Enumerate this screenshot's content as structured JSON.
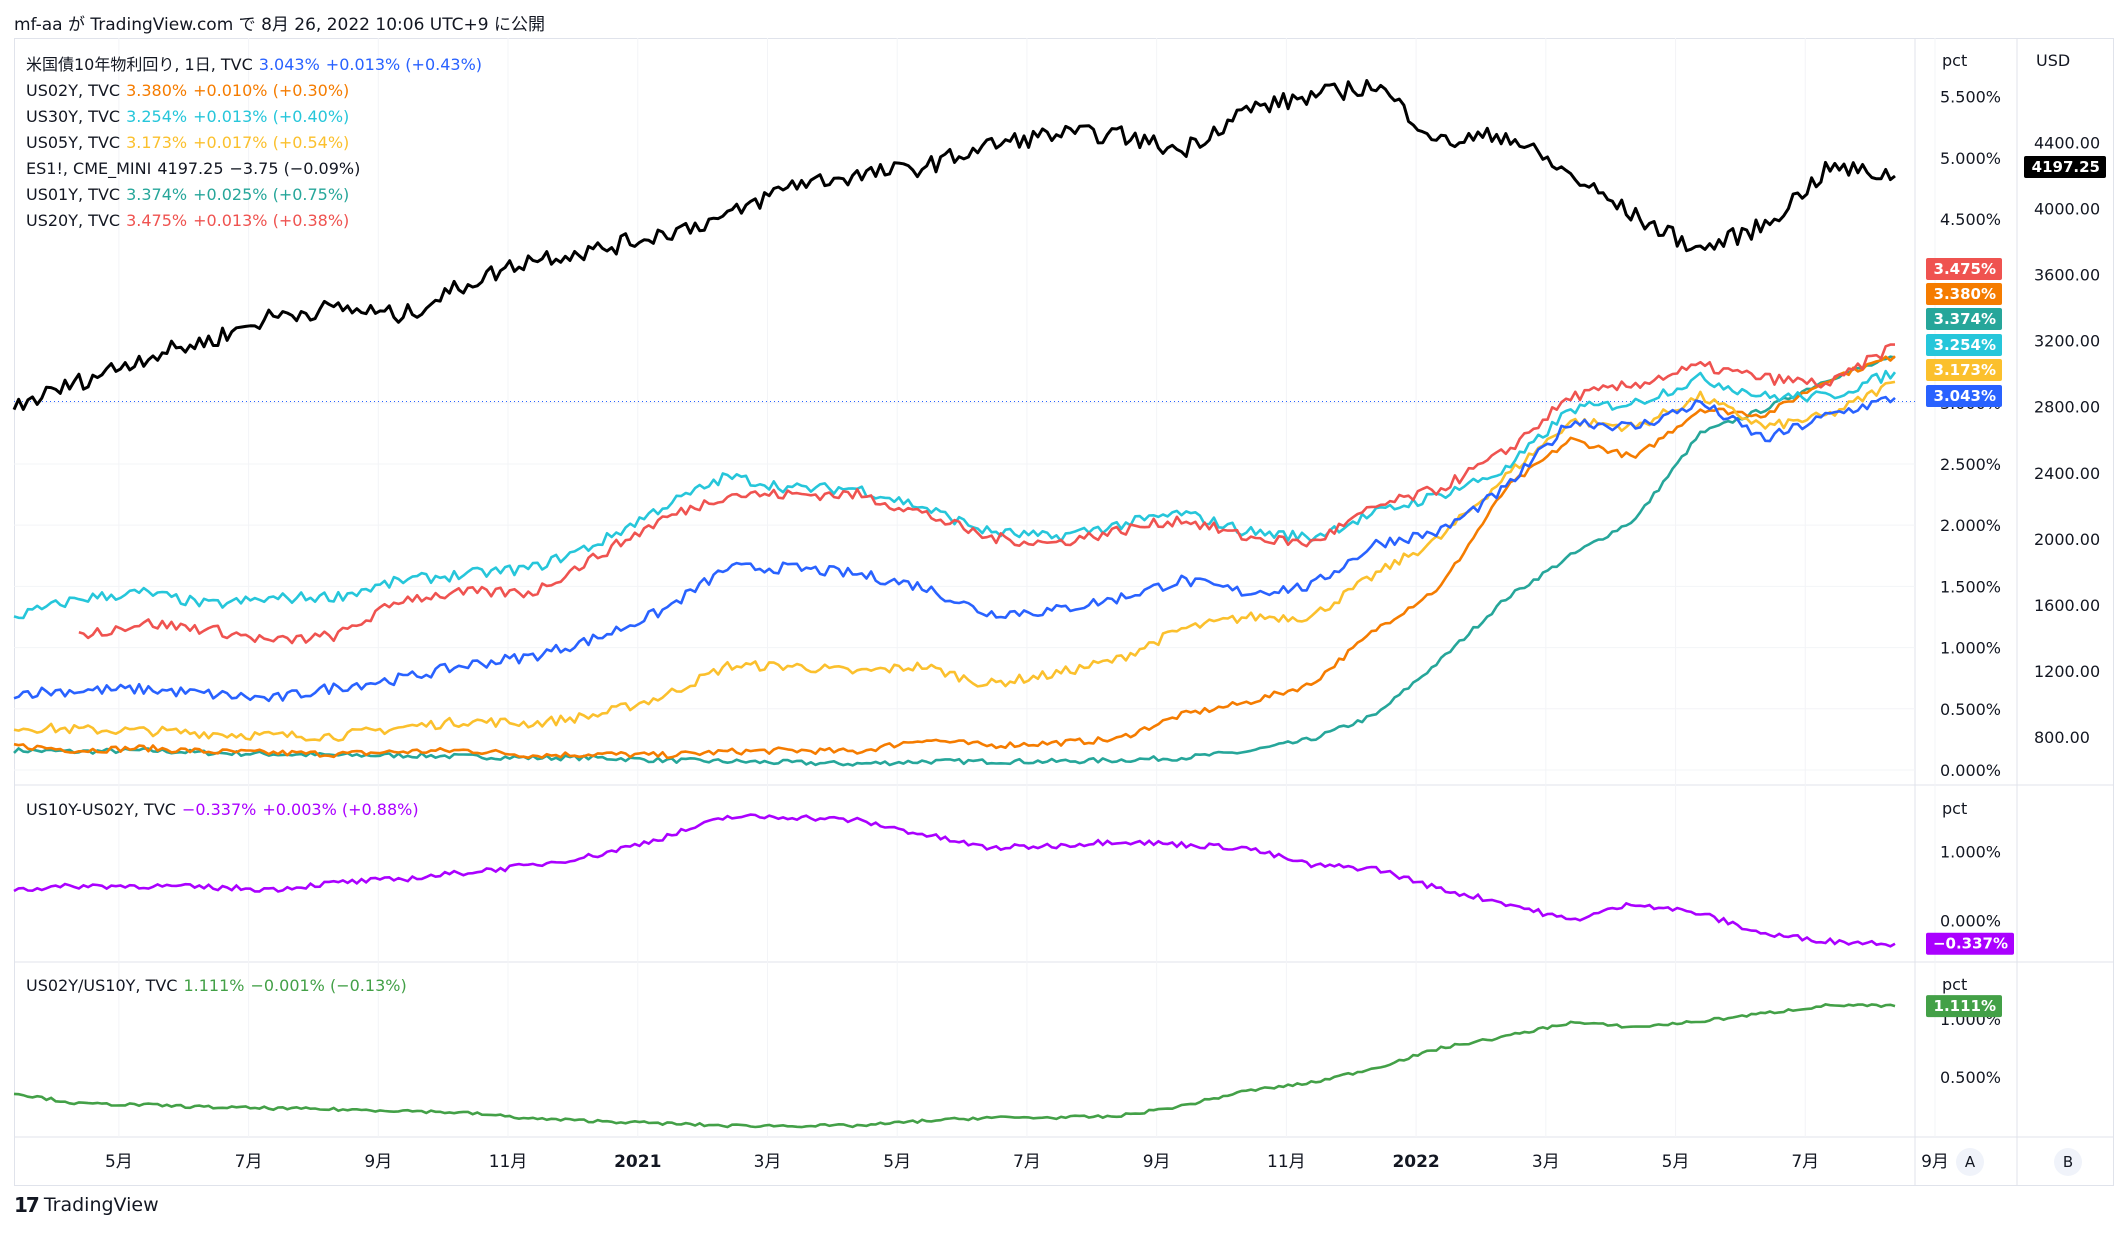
{
  "header": {
    "text": "mf-aa が TradingView.com で 8月 26, 2022 10:06 UTC+9 に公開"
  },
  "footer": {
    "brand": "TradingView",
    "logo": "17"
  },
  "colors": {
    "us10y": "#2962ff",
    "us02y": "#f57c00",
    "us30y": "#26c6da",
    "us05y": "#fbc02d",
    "es1": "#000000",
    "us01y": "#26a69a",
    "us20y": "#ef5350",
    "spread": "#aa00ff",
    "ratio": "#43a047"
  },
  "legend_main": [
    {
      "name": "米国債10年物利回り, 1日, TVC",
      "last": "3.043%",
      "chg": "+0.013% (+0.43%)",
      "color": "#2962ff"
    },
    {
      "name": "US02Y, TVC",
      "last": "3.380%",
      "chg": "+0.010% (+0.30%)",
      "color": "#f57c00"
    },
    {
      "name": "US30Y, TVC",
      "last": "3.254%",
      "chg": "+0.013% (+0.40%)",
      "color": "#26c6da"
    },
    {
      "name": "US05Y, TVC",
      "last": "3.173%",
      "chg": "+0.017% (+0.54%)",
      "color": "#fbc02d"
    },
    {
      "name": "ES1!, CME_MINI",
      "last": "4197.25",
      "chg": "−3.75 (−0.09%)",
      "color": "#131722"
    },
    {
      "name": "US01Y, TVC",
      "last": "3.374%",
      "chg": "+0.025% (+0.75%)",
      "color": "#26a69a"
    },
    {
      "name": "US20Y, TVC",
      "last": "3.475%",
      "chg": "+0.013% (+0.38%)",
      "color": "#ef5350"
    }
  ],
  "legend_spread": {
    "name": "US10Y-US02Y, TVC",
    "last": "−0.337%",
    "chg": "+0.003% (+0.88%)",
    "color": "#aa00ff"
  },
  "legend_ratio": {
    "name": "US02Y/US10Y, TVC",
    "last": "1.111%",
    "chg": "−0.001% (−0.13%)",
    "color": "#43a047"
  },
  "axis_labels": {
    "pct": "pct",
    "usd": "USD",
    "pct_ticks": [
      "5.500%",
      "5.000%",
      "4.500%",
      "3.000%",
      "2.500%",
      "2.000%",
      "1.500%",
      "1.000%",
      "0.500%",
      "0.000%"
    ],
    "usd_ticks": [
      "4400.00",
      "4000.00",
      "3600.00",
      "3200.00",
      "2800.00",
      "2400.00",
      "2000.00",
      "1600.00",
      "1200.00",
      "800.00"
    ],
    "spread_ticks": [
      "1.000%",
      "0.000%"
    ],
    "ratio_ticks": [
      "1.000%",
      "0.500%"
    ],
    "x_ticks": [
      "5月",
      "7月",
      "9月",
      "11月",
      "2021",
      "3月",
      "5月",
      "7月",
      "9月",
      "11月",
      "2022",
      "3月",
      "5月",
      "7月",
      "9月"
    ],
    "btn_a": "A",
    "btn_b": "B"
  },
  "price_badges": [
    {
      "text": "3.475%",
      "color": "#ef5350"
    },
    {
      "text": "3.380%",
      "color": "#f57c00"
    },
    {
      "text": "3.374%",
      "color": "#26a69a"
    },
    {
      "text": "3.254%",
      "color": "#26c6da"
    },
    {
      "text": "3.173%",
      "color": "#fbc02d"
    },
    {
      "text": "3.043%",
      "color": "#2962ff"
    },
    {
      "text": "4197.25",
      "color": "#000000"
    },
    {
      "text": "−0.337%",
      "color": "#aa00ff"
    },
    {
      "text": "1.111%",
      "color": "#43a047"
    }
  ],
  "chart_data": [
    {
      "type": "line",
      "title": "米国債10年物利回り, 1日, TVC",
      "x": [
        "2020-04",
        "2020-05",
        "2020-06",
        "2020-07",
        "2020-08",
        "2020-09",
        "2020-10",
        "2020-11",
        "2020-12",
        "2021-01",
        "2021-02",
        "2021-03",
        "2021-04",
        "2021-05",
        "2021-06",
        "2021-07",
        "2021-08",
        "2021-09",
        "2021-10",
        "2021-11",
        "2021-12",
        "2022-01",
        "2022-02",
        "2022-03",
        "2022-04",
        "2022-05",
        "2022-06",
        "2022-07",
        "2022-08",
        "2022-09"
      ],
      "series": [
        {
          "name": "US10Y",
          "axis": "pct",
          "values": [
            0.63,
            0.65,
            0.66,
            0.62,
            0.58,
            0.68,
            0.75,
            0.86,
            0.93,
            1.08,
            1.3,
            1.65,
            1.65,
            1.6,
            1.5,
            1.28,
            1.3,
            1.4,
            1.55,
            1.45,
            1.5,
            1.85,
            1.95,
            2.3,
            2.85,
            2.8,
            3.0,
            2.7,
            2.9,
            3.04
          ]
        },
        {
          "name": "US02Y",
          "axis": "pct",
          "values": [
            0.2,
            0.16,
            0.18,
            0.15,
            0.14,
            0.13,
            0.15,
            0.16,
            0.12,
            0.13,
            0.12,
            0.15,
            0.16,
            0.15,
            0.25,
            0.2,
            0.22,
            0.25,
            0.45,
            0.55,
            0.7,
            1.15,
            1.5,
            2.3,
            2.7,
            2.55,
            2.95,
            2.9,
            3.2,
            3.38
          ]
        },
        {
          "name": "US30Y",
          "axis": "pct",
          "values": [
            1.25,
            1.4,
            1.45,
            1.35,
            1.4,
            1.42,
            1.55,
            1.6,
            1.65,
            1.85,
            2.15,
            2.4,
            2.3,
            2.3,
            2.15,
            1.95,
            1.9,
            2.0,
            2.1,
            1.95,
            1.9,
            2.1,
            2.25,
            2.45,
            2.95,
            3.0,
            3.2,
            3.05,
            3.05,
            3.25
          ]
        },
        {
          "name": "US05Y",
          "axis": "pct",
          "values": [
            0.35,
            0.33,
            0.32,
            0.3,
            0.28,
            0.28,
            0.35,
            0.4,
            0.38,
            0.45,
            0.6,
            0.85,
            0.85,
            0.8,
            0.85,
            0.7,
            0.78,
            0.9,
            1.15,
            1.25,
            1.25,
            1.6,
            1.9,
            2.4,
            2.85,
            2.8,
            3.05,
            2.8,
            2.9,
            3.17
          ]
        },
        {
          "name": "ES1!",
          "axis": "usd",
          "values": [
            2800,
            2950,
            3100,
            3200,
            3350,
            3400,
            3350,
            3550,
            3700,
            3750,
            3850,
            3950,
            4150,
            4200,
            4250,
            4380,
            4450,
            4450,
            4350,
            4600,
            4680,
            4750,
            4400,
            4450,
            4200,
            3950,
            3750,
            3900,
            4250,
            4197.25
          ]
        },
        {
          "name": "US01Y",
          "axis": "pct",
          "values": [
            0.16,
            0.15,
            0.16,
            0.14,
            0.13,
            0.12,
            0.12,
            0.11,
            0.1,
            0.1,
            0.08,
            0.07,
            0.06,
            0.05,
            0.07,
            0.07,
            0.07,
            0.08,
            0.1,
            0.15,
            0.25,
            0.45,
            0.9,
            1.4,
            1.75,
            2.05,
            2.75,
            2.95,
            3.2,
            3.37
          ]
        },
        {
          "name": "US20Y",
          "axis": "pct",
          "values": [
            null,
            1.1,
            1.2,
            1.15,
            1.05,
            1.1,
            1.4,
            1.45,
            1.45,
            1.75,
            2.05,
            2.25,
            2.25,
            2.25,
            2.1,
            1.9,
            1.85,
            1.95,
            2.05,
            1.9,
            1.85,
            2.15,
            2.3,
            2.6,
            3.05,
            3.15,
            3.3,
            3.2,
            3.15,
            3.475
          ]
        }
      ],
      "pct_ylim": [
        0,
        5.8
      ],
      "usd_ylim": [
        600,
        4900
      ]
    },
    {
      "type": "line",
      "title": "US10Y-US02Y, TVC",
      "x": [
        "2020-04",
        "2020-05",
        "2020-06",
        "2020-07",
        "2020-08",
        "2020-09",
        "2020-10",
        "2020-11",
        "2020-12",
        "2021-01",
        "2021-02",
        "2021-03",
        "2021-04",
        "2021-05",
        "2021-06",
        "2021-07",
        "2021-08",
        "2021-09",
        "2021-10",
        "2021-11",
        "2021-12",
        "2022-01",
        "2022-02",
        "2022-03",
        "2022-04",
        "2022-05",
        "2022-06",
        "2022-07",
        "2022-08",
        "2022-09"
      ],
      "series": [
        {
          "name": "US10Y-US02Y",
          "values": [
            0.45,
            0.5,
            0.5,
            0.48,
            0.45,
            0.55,
            0.6,
            0.7,
            0.8,
            0.95,
            1.2,
            1.5,
            1.5,
            1.45,
            1.25,
            1.05,
            1.08,
            1.15,
            1.1,
            1.05,
            0.8,
            0.75,
            0.45,
            0.25,
            0.0,
            0.25,
            0.1,
            -0.2,
            -0.3,
            -0.337
          ]
        }
      ],
      "ylim": [
        -0.5,
        1.6
      ]
    },
    {
      "type": "line",
      "title": "US02Y/US10Y, TVC",
      "x": [
        "2020-04",
        "2020-05",
        "2020-06",
        "2020-07",
        "2020-08",
        "2020-09",
        "2020-10",
        "2020-11",
        "2020-12",
        "2021-01",
        "2021-02",
        "2021-03",
        "2021-04",
        "2021-05",
        "2021-06",
        "2021-07",
        "2021-08",
        "2021-09",
        "2021-10",
        "2021-11",
        "2021-12",
        "2022-01",
        "2022-02",
        "2022-03",
        "2022-04",
        "2022-05",
        "2022-06",
        "2022-07",
        "2022-08",
        "2022-09"
      ],
      "series": [
        {
          "name": "US02Y/US10Y",
          "values": [
            0.36,
            0.27,
            0.26,
            0.24,
            0.23,
            0.22,
            0.21,
            0.19,
            0.14,
            0.12,
            0.1,
            0.08,
            0.08,
            0.08,
            0.12,
            0.15,
            0.15,
            0.16,
            0.25,
            0.38,
            0.45,
            0.58,
            0.75,
            0.85,
            0.97,
            0.93,
            0.98,
            1.05,
            1.12,
            1.111
          ]
        }
      ],
      "ylim": [
        0.0,
        1.25
      ]
    }
  ]
}
